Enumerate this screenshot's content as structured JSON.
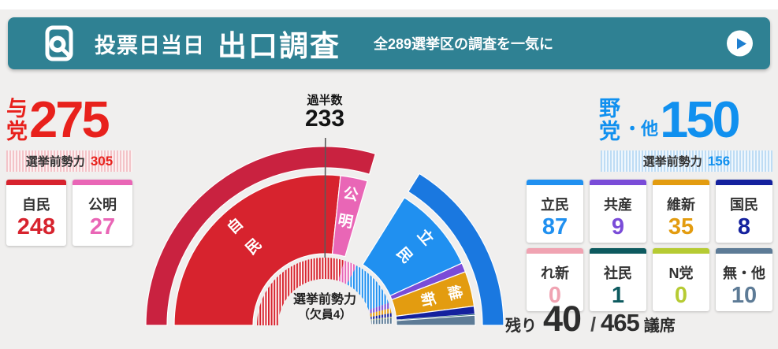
{
  "page_bg": "#f0efee",
  "banner": {
    "bg_color": "#2f8193",
    "icon": "exit-poll-magnifier-icon",
    "title_prefix": "投票日当日",
    "title_main": "出口調査",
    "subtitle": "全289選挙区の調査を一気に",
    "play_button": {
      "icon": "play-icon",
      "circle_color": "#ffffff",
      "triangle_color": "#1f7fd0"
    }
  },
  "ruling_bloc": {
    "label": "与党",
    "seats": "275",
    "accent_color": "#e8211c",
    "pre_strength_label": "選挙前勢力",
    "pre_strength_seats": "305"
  },
  "opposition_bloc": {
    "label": "野党",
    "label_suffix": "・他",
    "seats": "150",
    "accent_color": "#1090ef",
    "pre_strength_label": "選挙前勢力",
    "pre_strength_seats": "156"
  },
  "ruling_parties": [
    {
      "name": "自民",
      "seats": "248",
      "color": "#d7232e"
    },
    {
      "name": "公明",
      "seats": "27",
      "color": "#e966b6"
    }
  ],
  "opposition_parties": [
    {
      "name": "立民",
      "seats": "87",
      "color": "#2090f0"
    },
    {
      "name": "共産",
      "seats": "9",
      "color": "#7a4cd8"
    },
    {
      "name": "維新",
      "seats": "35",
      "color": "#e39c10"
    },
    {
      "name": "国民",
      "seats": "8",
      "color": "#14219e"
    },
    {
      "name": "れ新",
      "seats": "0",
      "color": "#f0a3b2"
    },
    {
      "name": "社民",
      "seats": "1",
      "color": "#0d5a5f"
    },
    {
      "name": "N党",
      "seats": "0",
      "color": "#b6cb33"
    },
    {
      "name": "無・他",
      "seats": "10",
      "color": "#5d7b96"
    }
  ],
  "majority": {
    "label": "過半数",
    "value": "233"
  },
  "center_note": {
    "line1": "選挙前勢力",
    "line2": "（欠員4）"
  },
  "remaining": {
    "label": "残り",
    "value": "40",
    "separator": "/",
    "total": "465",
    "unit": "議席"
  },
  "chart_data": {
    "type": "half_donut",
    "orientation": "semicircle_180_left_to_right",
    "total_seats": 465,
    "majority_marker": {
      "label": "過半数",
      "value": 233
    },
    "remaining_seats": {
      "label": "残り",
      "value": 40,
      "total": 465,
      "unit": "議席"
    },
    "center_label": {
      "line1": "選挙前勢力",
      "line2": "（欠員4）"
    },
    "outer_ring_coalitions": [
      {
        "name": "与党",
        "value": 275,
        "color": "#c92240"
      },
      {
        "name": "残り",
        "value": 40,
        "color": null
      },
      {
        "name": "野党・他",
        "value": 150,
        "color": "#1a78e0"
      }
    ],
    "middle_ring_exit_poll": [
      {
        "name": "自民",
        "value": 248,
        "color": "#d7232e",
        "show_label": true
      },
      {
        "name": "公明",
        "value": 27,
        "color": "#e966b6",
        "show_label": true
      },
      {
        "name": "残り",
        "value": 40,
        "color": null
      },
      {
        "name": "立民",
        "value": 87,
        "color": "#2090f0",
        "show_label": true
      },
      {
        "name": "共産",
        "value": 9,
        "color": "#7a4cd8"
      },
      {
        "name": "維新",
        "value": 35,
        "color": "#e39c10",
        "show_label": true
      },
      {
        "name": "国民",
        "value": 8,
        "color": "#14219e"
      },
      {
        "name": "れ新",
        "value": 0,
        "color": "#f0a3b2"
      },
      {
        "name": "社民",
        "value": 1,
        "color": "#0d5a5f"
      },
      {
        "name": "N党",
        "value": 0,
        "color": "#b6cb33"
      },
      {
        "name": "無・他",
        "value": 10,
        "color": "#5d7b96"
      }
    ],
    "inner_ring_pre_election": [
      {
        "name": "自民",
        "value": 276,
        "color": "#d7232e"
      },
      {
        "name": "公明",
        "value": 29,
        "color": "#e966b6"
      },
      {
        "name": "立民",
        "value": 110,
        "color": "#2090f0"
      },
      {
        "name": "共産",
        "value": 12,
        "color": "#7a4cd8"
      },
      {
        "name": "維新",
        "value": 11,
        "color": "#e39c10"
      },
      {
        "name": "国民",
        "value": 8,
        "color": "#14219e"
      },
      {
        "name": "れ新",
        "value": 1,
        "color": "#f0a3b2"
      },
      {
        "name": "社民",
        "value": 1,
        "color": "#0d5a5f"
      },
      {
        "name": "N党",
        "value": 1,
        "color": "#b6cb33"
      },
      {
        "name": "無・他",
        "value": 12,
        "color": "#5d7b96"
      },
      {
        "name": "欠員",
        "value": 4,
        "color": null
      }
    ],
    "inner_ring_style": "striped-vertical"
  }
}
